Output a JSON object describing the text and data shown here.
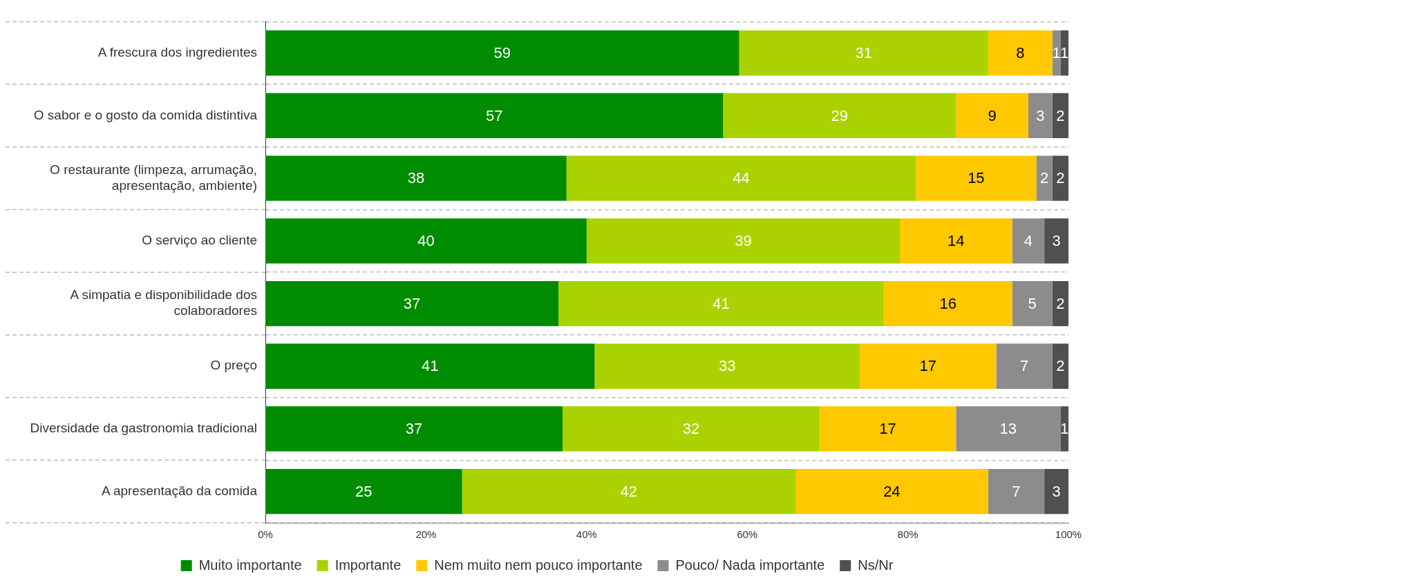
{
  "chart_data": {
    "type": "bar",
    "orientation": "horizontal",
    "stacked": true,
    "grid": "y",
    "legend": "bottom",
    "categories": [
      "A frescura dos ingredientes",
      "O sabor e o gosto da comida distintiva",
      "O restaurante (limpeza, arrumação, apresentação, ambiente)",
      "O serviço ao cliente",
      "A simpatia e disponibilidade dos colaboradores",
      "O preço",
      "Diversidade da gastronomia tradicional",
      "A apresentação da comida"
    ],
    "xlim": [
      0,
      100
    ],
    "xticks": [
      {
        "value": 0,
        "label": "0%"
      },
      {
        "value": 20,
        "label": "20%"
      },
      {
        "value": 40,
        "label": "40%"
      },
      {
        "value": 60,
        "label": "60%"
      },
      {
        "value": 80,
        "label": "80%"
      },
      {
        "value": 100,
        "label": "100%"
      }
    ],
    "series": [
      {
        "name": "Muito importante",
        "color": "#008c00",
        "values": [
          59,
          57,
          37.5,
          40,
          36.5,
          41,
          37,
          24.5
        ],
        "value_labels": [
          "59",
          "57",
          "38",
          "40",
          "37",
          "41",
          "37",
          "25"
        ]
      },
      {
        "name": "Importante",
        "color": "#a9d200",
        "values": [
          31,
          29,
          43.5,
          39,
          40.5,
          33,
          32,
          41.5
        ],
        "value_labels": [
          "31",
          "29",
          "44",
          "39",
          "41",
          "33",
          "32",
          "42"
        ]
      },
      {
        "name": "Nem muito nem pouco importante",
        "color": "#ffc800",
        "values": [
          8,
          9,
          15,
          14,
          16,
          17,
          17,
          24
        ],
        "value_labels": [
          "8",
          "9",
          "15",
          "14",
          "16",
          "17",
          "17",
          "24"
        ]
      },
      {
        "name": "Pouco/ Nada importante",
        "color": "#8c8c8c",
        "values": [
          1,
          3,
          2,
          4,
          5,
          7,
          13,
          7
        ],
        "value_labels": [
          "1",
          "3",
          "2",
          "4",
          "5",
          "7",
          "13",
          "7"
        ]
      },
      {
        "name": "Ns/Nr",
        "color": "#505050",
        "values": [
          1,
          2,
          2,
          3,
          2,
          2,
          1,
          3
        ],
        "value_labels": [
          "1",
          "2",
          "2",
          "3",
          "2",
          "2",
          "1",
          "3"
        ]
      }
    ]
  }
}
